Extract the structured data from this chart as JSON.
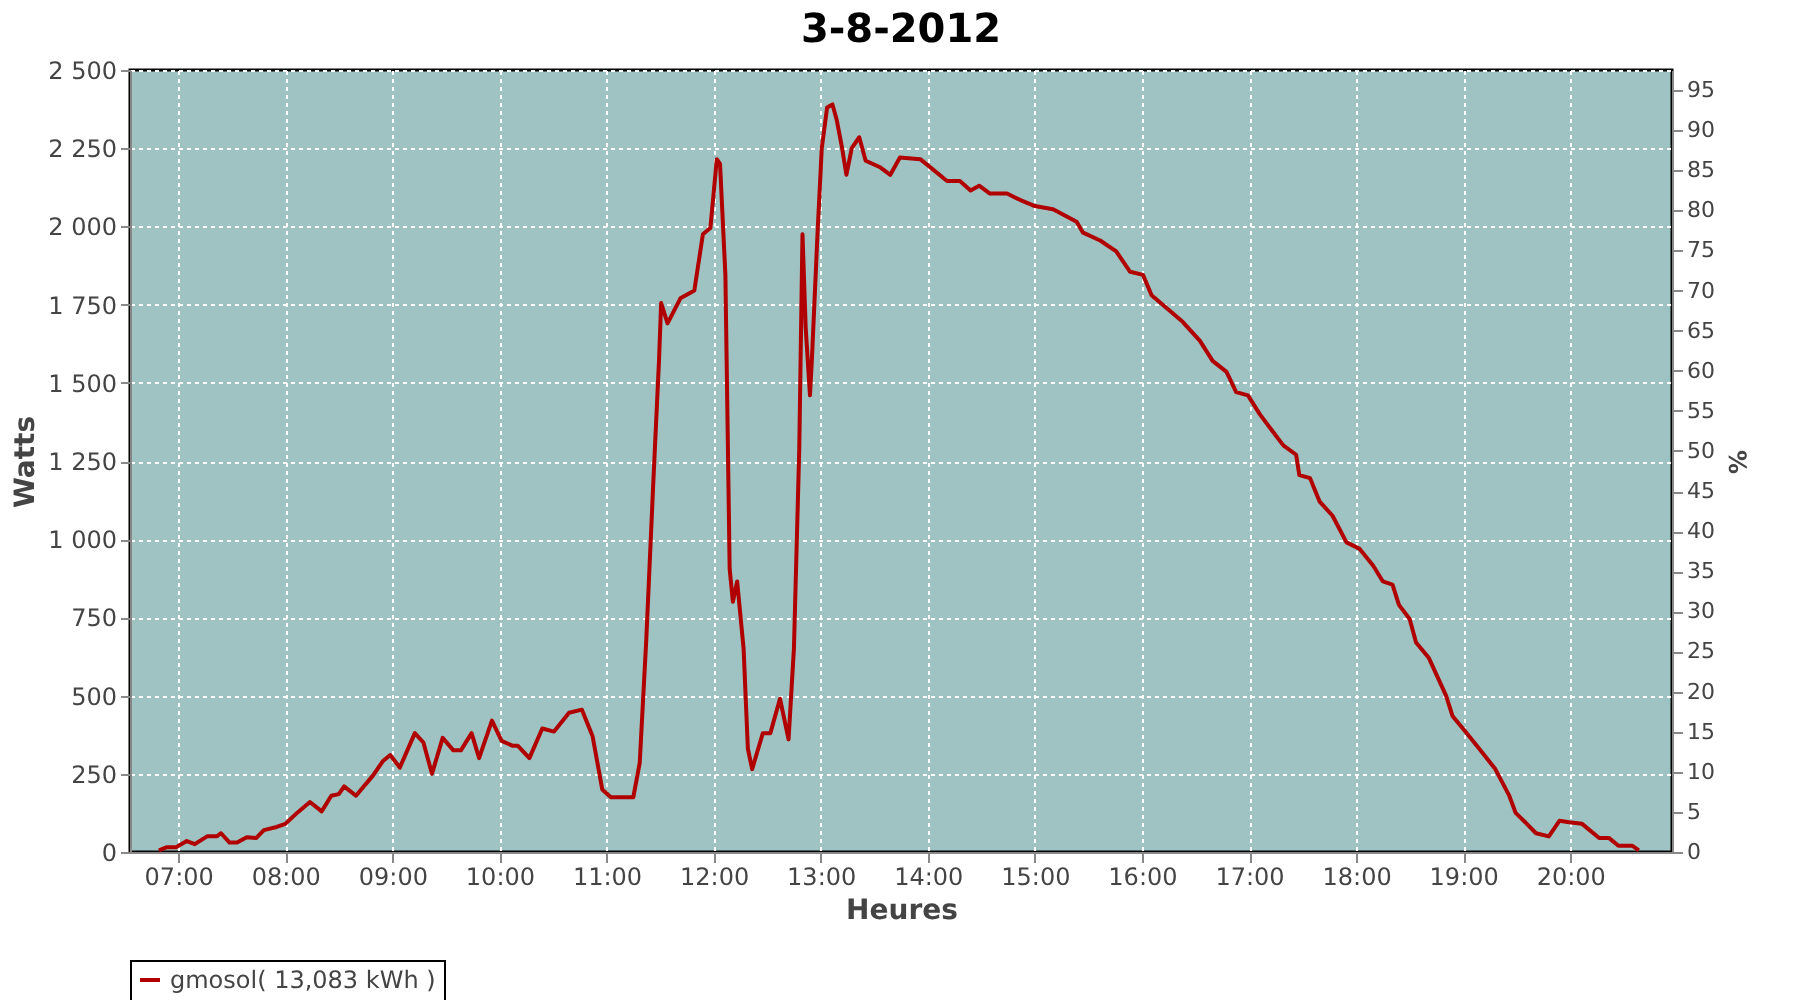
{
  "chart_data": {
    "type": "line",
    "title": "3-8-2012",
    "xlabel": "Heures",
    "ylabel": "Watts",
    "y2label": "%",
    "grid": true,
    "legend": "bottom",
    "xlim": [
      6.55,
      20.95
    ],
    "xticks": [
      {
        "value": 7,
        "label": "07:00"
      },
      {
        "value": 8,
        "label": "08:00"
      },
      {
        "value": 9,
        "label": "09:00"
      },
      {
        "value": 10,
        "label": "10:00"
      },
      {
        "value": 11,
        "label": "11:00"
      },
      {
        "value": 12,
        "label": "12:00"
      },
      {
        "value": 13,
        "label": "13:00"
      },
      {
        "value": 14,
        "label": "14:00"
      },
      {
        "value": 15,
        "label": "15:00"
      },
      {
        "value": 16,
        "label": "16:00"
      },
      {
        "value": 17,
        "label": "17:00"
      },
      {
        "value": 18,
        "label": "18:00"
      },
      {
        "value": 19,
        "label": "19:00"
      },
      {
        "value": 20,
        "label": "20:00"
      }
    ],
    "ylim": [
      0,
      2500
    ],
    "yticks": [
      0,
      250,
      500,
      750,
      {
        "value": 1000,
        "label": "1 000"
      },
      {
        "value": 1250,
        "label": "1 250"
      },
      {
        "value": 1500,
        "label": "1 500"
      },
      {
        "value": 1750,
        "label": "1 750"
      },
      {
        "value": 2000,
        "label": "2 000"
      },
      {
        "value": 2250,
        "label": "2 250"
      },
      {
        "value": 2500,
        "label": "2 500"
      }
    ],
    "y2lim": [
      0,
      97.5
    ],
    "y2ticks": [
      0,
      5,
      10,
      15,
      20,
      25,
      30,
      35,
      40,
      45,
      50,
      55,
      60,
      65,
      70,
      75,
      80,
      85,
      90,
      95
    ],
    "x": [
      6.82,
      6.89,
      6.98,
      7.08,
      7.155,
      7.27,
      7.36,
      7.4,
      7.48,
      7.55,
      7.64,
      7.73,
      7.8,
      7.92,
      8.0,
      8.11,
      8.23,
      8.34,
      8.43,
      8.5,
      8.55,
      8.66,
      8.82,
      8.91,
      8.98,
      9.07,
      9.21,
      9.29,
      9.37,
      9.47,
      9.57,
      9.64,
      9.74,
      9.81,
      9.93,
      10.02,
      10.12,
      10.17,
      10.28,
      10.4,
      10.51,
      10.65,
      10.77,
      10.87,
      10.96,
      11.04,
      11.21,
      11.25,
      11.31,
      11.37,
      11.44,
      11.49,
      11.51,
      11.57,
      11.69,
      11.82,
      11.9,
      11.97,
      12.03,
      12.06,
      12.11,
      12.15,
      12.18,
      12.22,
      12.28,
      12.32,
      12.36,
      12.46,
      12.53,
      12.62,
      12.7,
      12.75,
      12.8,
      12.83,
      12.86,
      12.9,
      12.92,
      12.97,
      13.01,
      13.06,
      13.11,
      13.15,
      13.2,
      13.24,
      13.29,
      13.36,
      13.42,
      13.55,
      13.65,
      13.74,
      13.93,
      14.18,
      14.3,
      14.4,
      14.48,
      14.58,
      14.74,
      14.86,
      15.0,
      15.17,
      15.39,
      15.45,
      15.61,
      15.76,
      15.89,
      16.01,
      16.09,
      16.26,
      16.38,
      16.54,
      16.66,
      16.79,
      16.88,
      16.99,
      17.1,
      17.22,
      17.32,
      17.44,
      17.47,
      17.57,
      17.66,
      17.78,
      17.91,
      18.03,
      18.16,
      18.25,
      18.34,
      18.4,
      18.5,
      18.56,
      18.68,
      18.84,
      18.9,
      19.02,
      19.15,
      19.3,
      19.43,
      19.49,
      19.58,
      19.68,
      19.8,
      19.9,
      19.99,
      20.11,
      20.27,
      20.36,
      20.45,
      20.58,
      20.64
    ],
    "series": [
      {
        "name": "gmosol( 13,083 kWh )",
        "color": "#b00000",
        "values": [
          5,
          15,
          15,
          35,
          25,
          50,
          50,
          60,
          30,
          30,
          47,
          45,
          70,
          80,
          90,
          125,
          160,
          130,
          180,
          185,
          210,
          180,
          245,
          290,
          310,
          270,
          380,
          350,
          250,
          365,
          325,
          325,
          380,
          300,
          420,
          355,
          340,
          340,
          300,
          395,
          385,
          445,
          455,
          370,
          200,
          175,
          175,
          175,
          285,
          670,
          1205,
          1570,
          1755,
          1690,
          1770,
          1795,
          1975,
          1995,
          2215,
          2200,
          1845,
          905,
          800,
          865,
          650,
          330,
          265,
          380,
          380,
          490,
          360,
          650,
          1290,
          1975,
          1675,
          1460,
          1590,
          1975,
          2250,
          2380,
          2390,
          2340,
          2250,
          2165,
          2250,
          2285,
          2210,
          2190,
          2165,
          2220,
          2215,
          2145,
          2145,
          2115,
          2130,
          2105,
          2105,
          2085,
          2065,
          2055,
          2015,
          1980,
          1955,
          1920,
          1855,
          1845,
          1780,
          1730,
          1695,
          1635,
          1570,
          1535,
          1470,
          1460,
          1400,
          1345,
          1300,
          1270,
          1205,
          1195,
          1120,
          1075,
          990,
          970,
          915,
          865,
          855,
          790,
          745,
          670,
          620,
          500,
          435,
          385,
          330,
          265,
          180,
          125,
          95,
          60,
          50,
          100,
          95,
          90,
          45,
          45,
          20,
          20,
          5
        ]
      }
    ]
  }
}
